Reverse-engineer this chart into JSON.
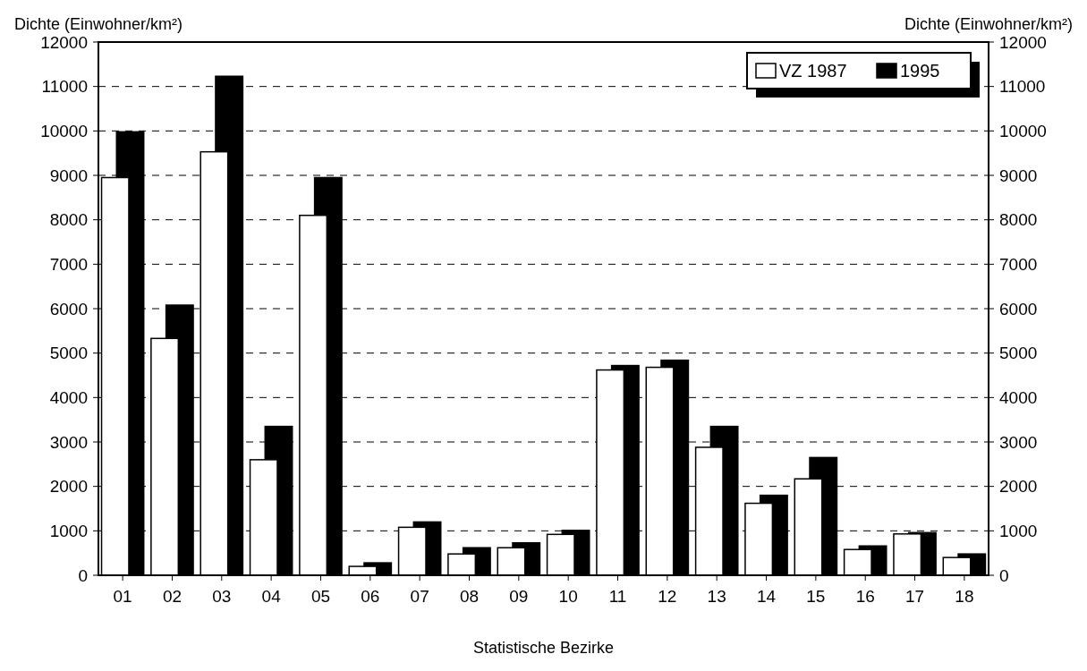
{
  "chart_data": {
    "type": "bar",
    "xlabel": "Statistische Bezirke",
    "ylabel": "Dichte (Einwohner/km²)",
    "y2label": "Dichte (Einwohner/km²)",
    "categories": [
      "01",
      "02",
      "03",
      "04",
      "05",
      "06",
      "07",
      "08",
      "09",
      "10",
      "11",
      "12",
      "13",
      "14",
      "15",
      "16",
      "17",
      "18"
    ],
    "series": [
      {
        "name": "VZ 1987",
        "color": "#ffffff",
        "values": [
          8950,
          5330,
          9530,
          2600,
          8100,
          200,
          1080,
          480,
          620,
          920,
          4620,
          4680,
          2880,
          1620,
          2170,
          580,
          930,
          400
        ]
      },
      {
        "name": "1995",
        "color": "#000000",
        "values": [
          9980,
          6080,
          11230,
          3350,
          8950,
          280,
          1200,
          620,
          730,
          1010,
          4720,
          4840,
          3350,
          1800,
          2650,
          660,
          960,
          480
        ]
      }
    ],
    "ylim": [
      0,
      12000
    ],
    "yticks": [
      0,
      1000,
      2000,
      3000,
      4000,
      5000,
      6000,
      7000,
      8000,
      9000,
      10000,
      11000,
      12000
    ],
    "y2lim": [
      0,
      12000
    ],
    "y2ticks": [
      0,
      1000,
      2000,
      3000,
      4000,
      5000,
      6000,
      7000,
      8000,
      9000,
      10000,
      11000,
      12000
    ],
    "grid": "y",
    "legend": "top right"
  }
}
